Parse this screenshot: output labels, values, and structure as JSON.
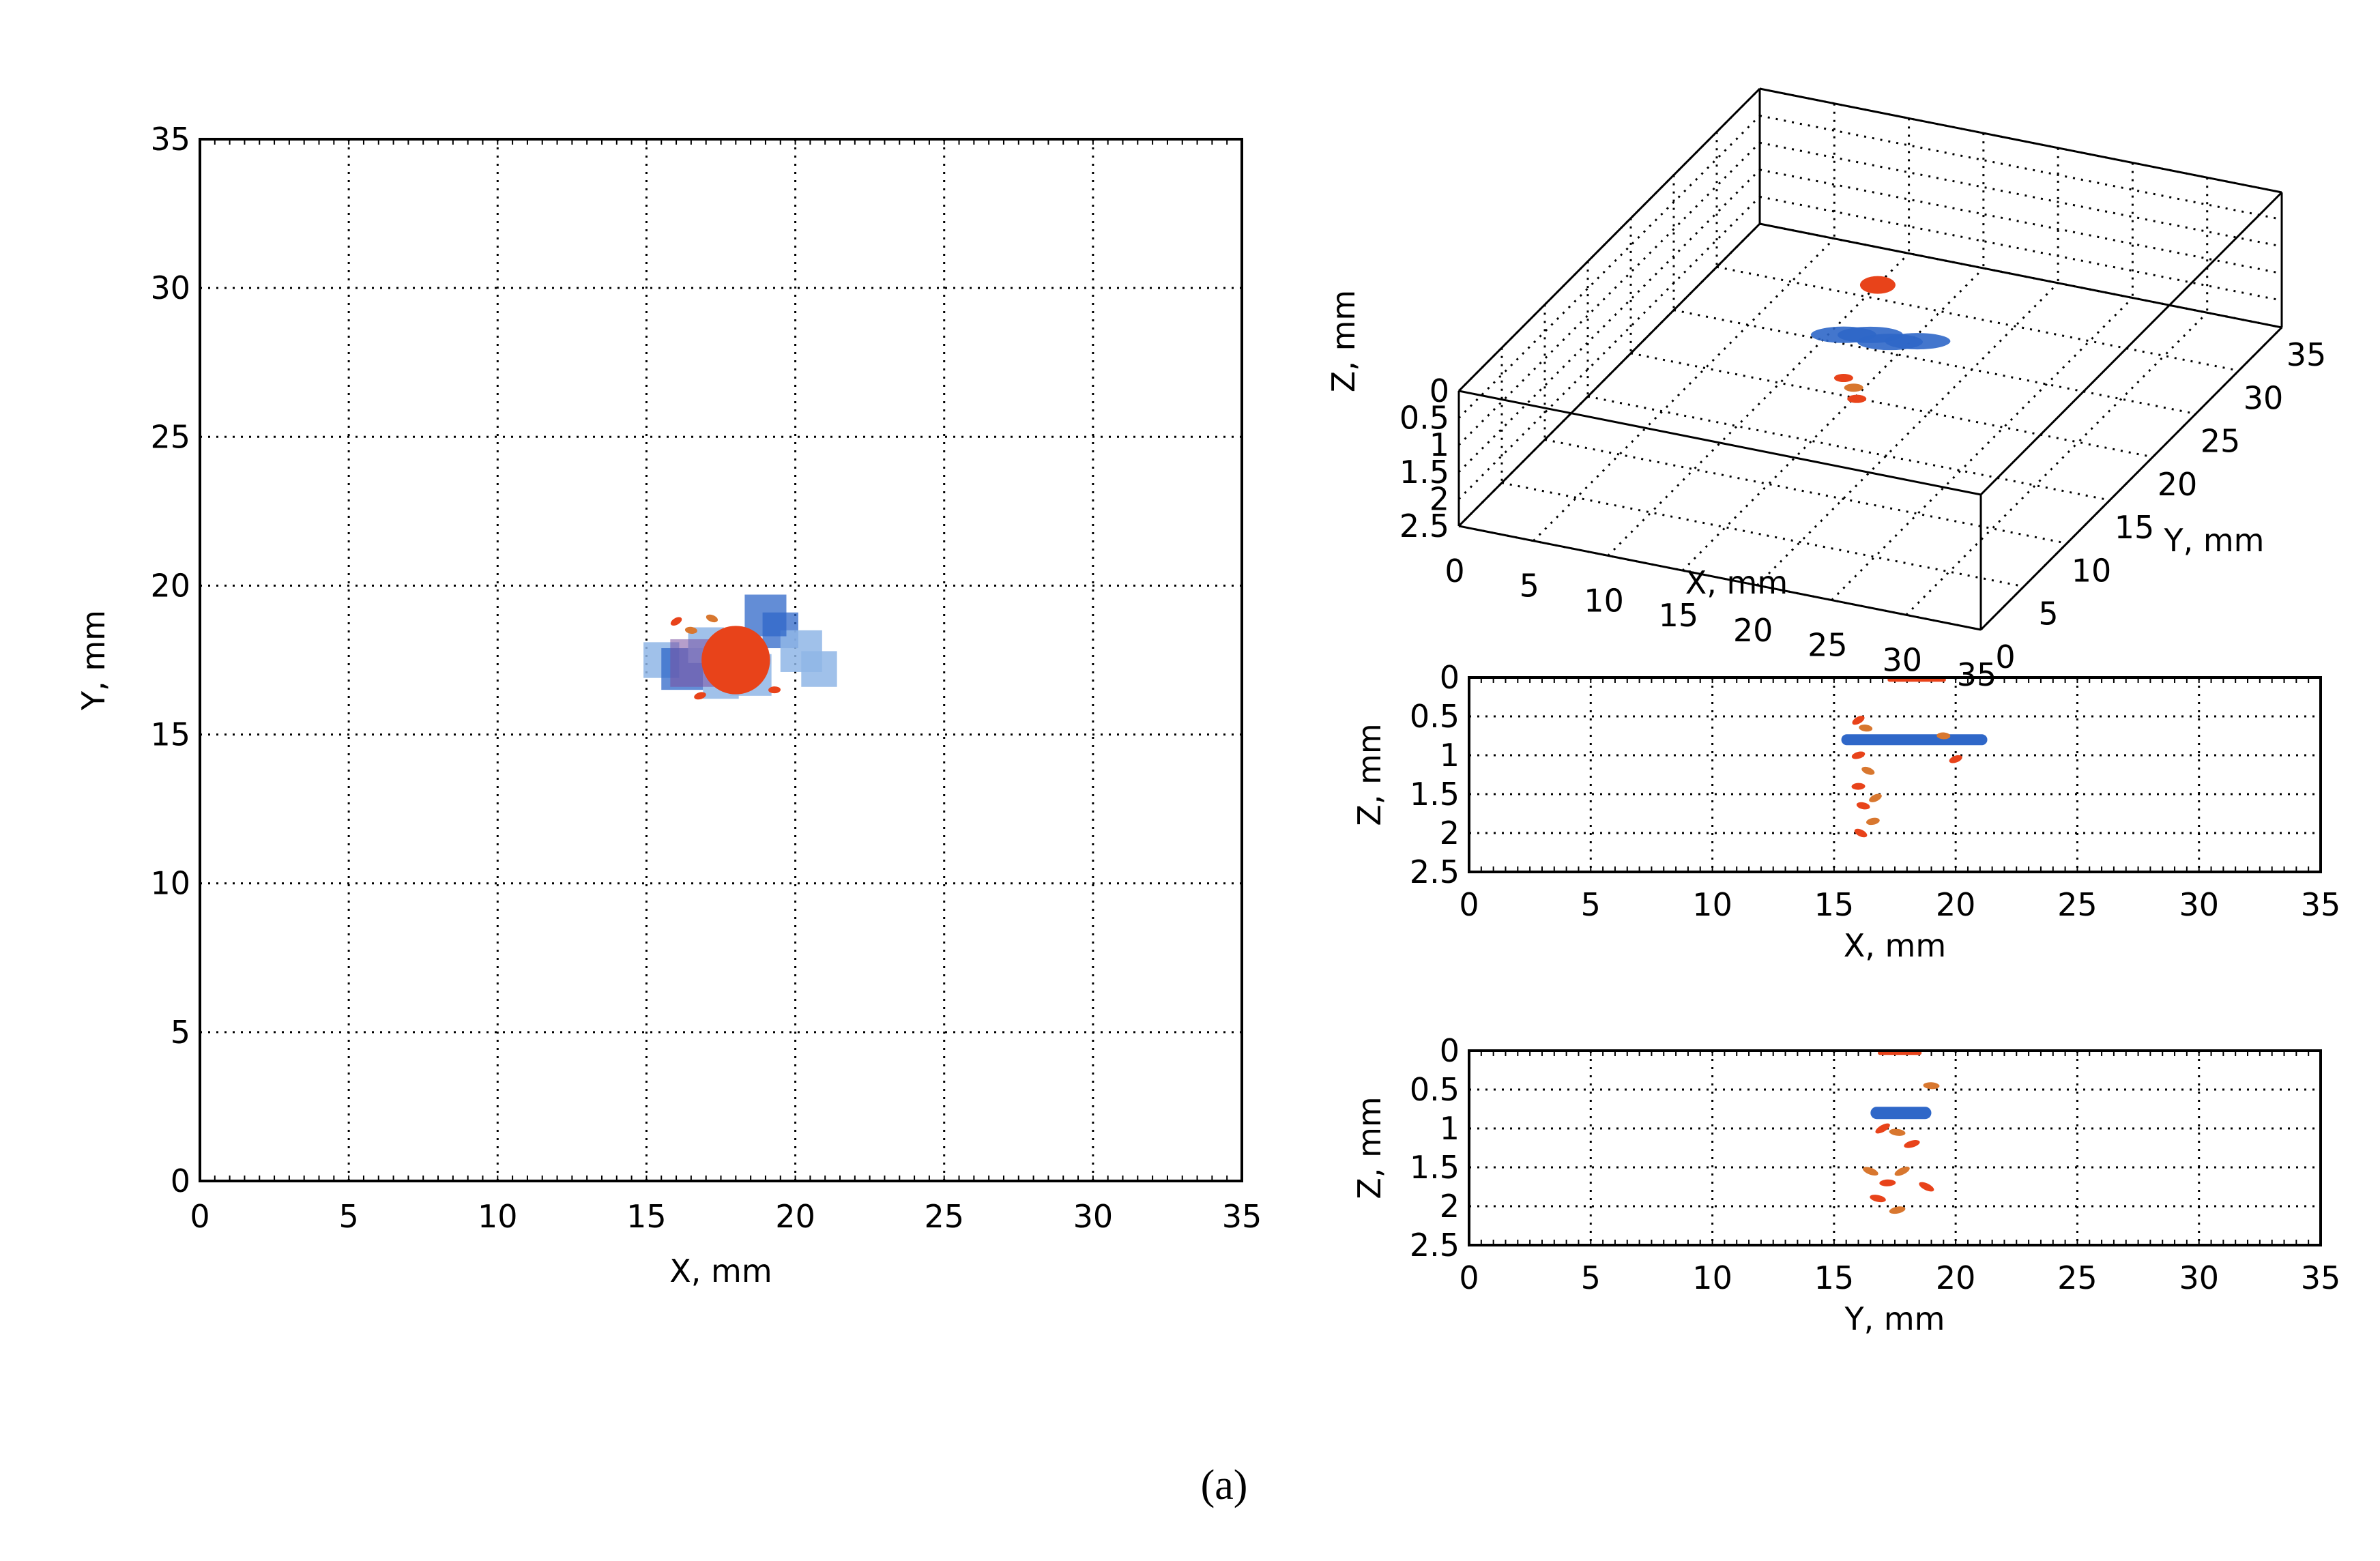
{
  "caption": "(a)",
  "colors": {
    "red": "#e8431a",
    "blue": "#2f67c8",
    "light_blue": "#8fb6e6",
    "purple": "#7a4fa0",
    "orange": "#d8772f"
  },
  "chart_data": [
    {
      "id": "xy",
      "type": "scatter",
      "title": "",
      "xlabel": "X, mm",
      "ylabel": "Y, mm",
      "xlim": [
        0,
        35
      ],
      "ylim": [
        0,
        35
      ],
      "xticks": [
        "0",
        "5",
        "10",
        "15",
        "20",
        "25",
        "30",
        "35"
      ],
      "yticks": [
        "0",
        "5",
        "10",
        "15",
        "20",
        "25",
        "30",
        "35"
      ],
      "grid": true,
      "series": [
        {
          "name": "blue defect patches",
          "points": [
            [
              15.5,
              17.5
            ],
            [
              16.2,
              17.2
            ],
            [
              17.0,
              18.0
            ],
            [
              18.5,
              17.0
            ],
            [
              19.5,
              18.5
            ],
            [
              20.2,
              17.8
            ],
            [
              20.8,
              17.2
            ],
            [
              19.0,
              19.0
            ],
            [
              17.5,
              16.8
            ]
          ]
        },
        {
          "name": "red inclusion",
          "points": [
            [
              18.0,
              17.5
            ]
          ]
        },
        {
          "name": "orange fragments",
          "points": [
            [
              16.0,
              18.8
            ],
            [
              16.5,
              18.5
            ],
            [
              16.8,
              16.3
            ],
            [
              17.2,
              18.9
            ],
            [
              19.3,
              16.5
            ]
          ]
        }
      ]
    },
    {
      "id": "xyz",
      "type": "scatter",
      "title": "",
      "xlabel": "X, mm",
      "ylabel": "Y, mm",
      "zlabel": "Z, mm",
      "xlim": [
        0,
        35
      ],
      "ylim": [
        0,
        35
      ],
      "zlim": [
        0,
        2.5
      ],
      "xticks": [
        "0",
        "5",
        "10",
        "15",
        "20",
        "25",
        "30",
        "35"
      ],
      "yticks": [
        "0",
        "5",
        "10",
        "15",
        "20",
        "25",
        "30",
        "35"
      ],
      "zticks": [
        "0",
        "0.5",
        "1",
        "1.5",
        "2",
        "2.5"
      ],
      "grid": true,
      "series": [
        {
          "name": "blue layer",
          "points": [
            [
              16,
              17,
              0.8
            ],
            [
              17.5,
              17.5,
              0.8
            ],
            [
              19,
              17.2,
              0.8
            ],
            [
              20.5,
              17.8,
              0.8
            ]
          ]
        },
        {
          "name": "red inclusion",
          "points": [
            [
              18,
              17.5,
              0
            ]
          ]
        },
        {
          "name": "orange fragments",
          "points": [
            [
              16,
              17,
              1.6
            ],
            [
              16.5,
              17.3,
              1.8
            ],
            [
              17,
              16.8,
              1.9
            ]
          ]
        }
      ]
    },
    {
      "id": "xz",
      "type": "scatter",
      "title": "",
      "xlabel": "X, mm",
      "ylabel": "Z, mm",
      "xlim": [
        0,
        35
      ],
      "ylim": [
        0,
        2.5
      ],
      "xticks": [
        "0",
        "5",
        "10",
        "15",
        "20",
        "25",
        "30",
        "35"
      ],
      "yticks": [
        "0",
        "0.5",
        "1",
        "1.5",
        "2",
        "2.5"
      ],
      "grid": true,
      "series": [
        {
          "name": "blue layer",
          "segment": [
            15.3,
            21.3,
            0.8
          ]
        },
        {
          "name": "red inclusion",
          "segment": [
            17.2,
            19.6,
            0.02
          ]
        },
        {
          "name": "orange fragments",
          "points": [
            [
              16.0,
              0.55
            ],
            [
              16.3,
              0.65
            ],
            [
              16.0,
              1.0
            ],
            [
              16.4,
              1.2
            ],
            [
              16.0,
              1.4
            ],
            [
              16.7,
              1.55
            ],
            [
              16.2,
              1.65
            ],
            [
              16.6,
              1.85
            ],
            [
              16.1,
              2.0
            ],
            [
              19.5,
              0.75
            ],
            [
              20.0,
              1.05
            ]
          ]
        }
      ]
    },
    {
      "id": "yz",
      "type": "scatter",
      "title": "",
      "xlabel": "Y, mm",
      "ylabel": "Z, mm",
      "xlim": [
        0,
        35
      ],
      "ylim": [
        0,
        2.5
      ],
      "xticks": [
        "0",
        "5",
        "10",
        "15",
        "20",
        "25",
        "30",
        "35"
      ],
      "yticks": [
        "0",
        "0.5",
        "1",
        "1.5",
        "2",
        "2.5"
      ],
      "grid": true,
      "series": [
        {
          "name": "blue layer",
          "segment": [
            16.5,
            19.0,
            0.8
          ]
        },
        {
          "name": "red inclusion",
          "segment": [
            16.8,
            18.6,
            0.02
          ]
        },
        {
          "name": "orange fragments",
          "points": [
            [
              17.0,
              1.0
            ],
            [
              17.6,
              1.05
            ],
            [
              18.2,
              1.2
            ],
            [
              16.5,
              1.55
            ],
            [
              17.2,
              1.7
            ],
            [
              17.8,
              1.55
            ],
            [
              16.8,
              1.9
            ],
            [
              17.6,
              2.05
            ],
            [
              18.8,
              1.75
            ],
            [
              19.0,
              0.45
            ]
          ]
        }
      ]
    }
  ]
}
